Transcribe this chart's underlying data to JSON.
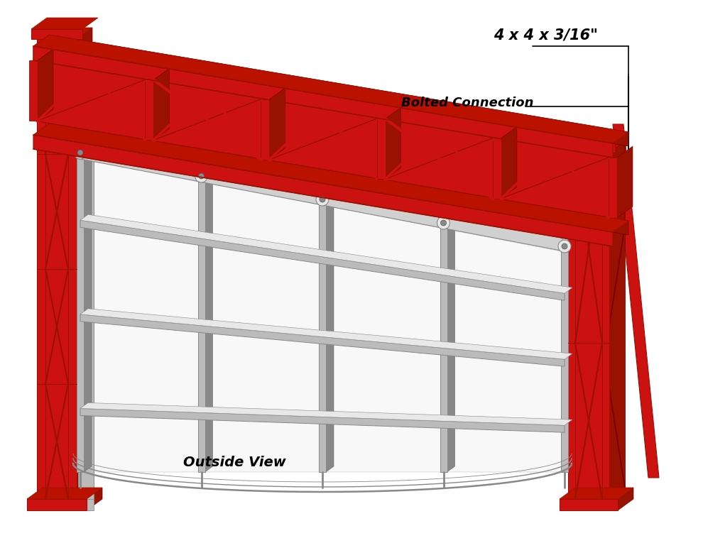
{
  "bg_color": "#ffffff",
  "red_color": "#CC1111",
  "dark_red": "#991100",
  "mid_red": "#BB1100",
  "steel_color": "#D0D0D0",
  "steel_dark": "#888888",
  "steel_light": "#E8E8E8",
  "steel_mid": "#BBBBBB",
  "label_size": "4 x 4 x 3/16\"",
  "label_bolted": "Bolted Connection",
  "label_outside": "Outside View",
  "figsize": [
    9.9,
    7.65
  ],
  "dpi": 100
}
